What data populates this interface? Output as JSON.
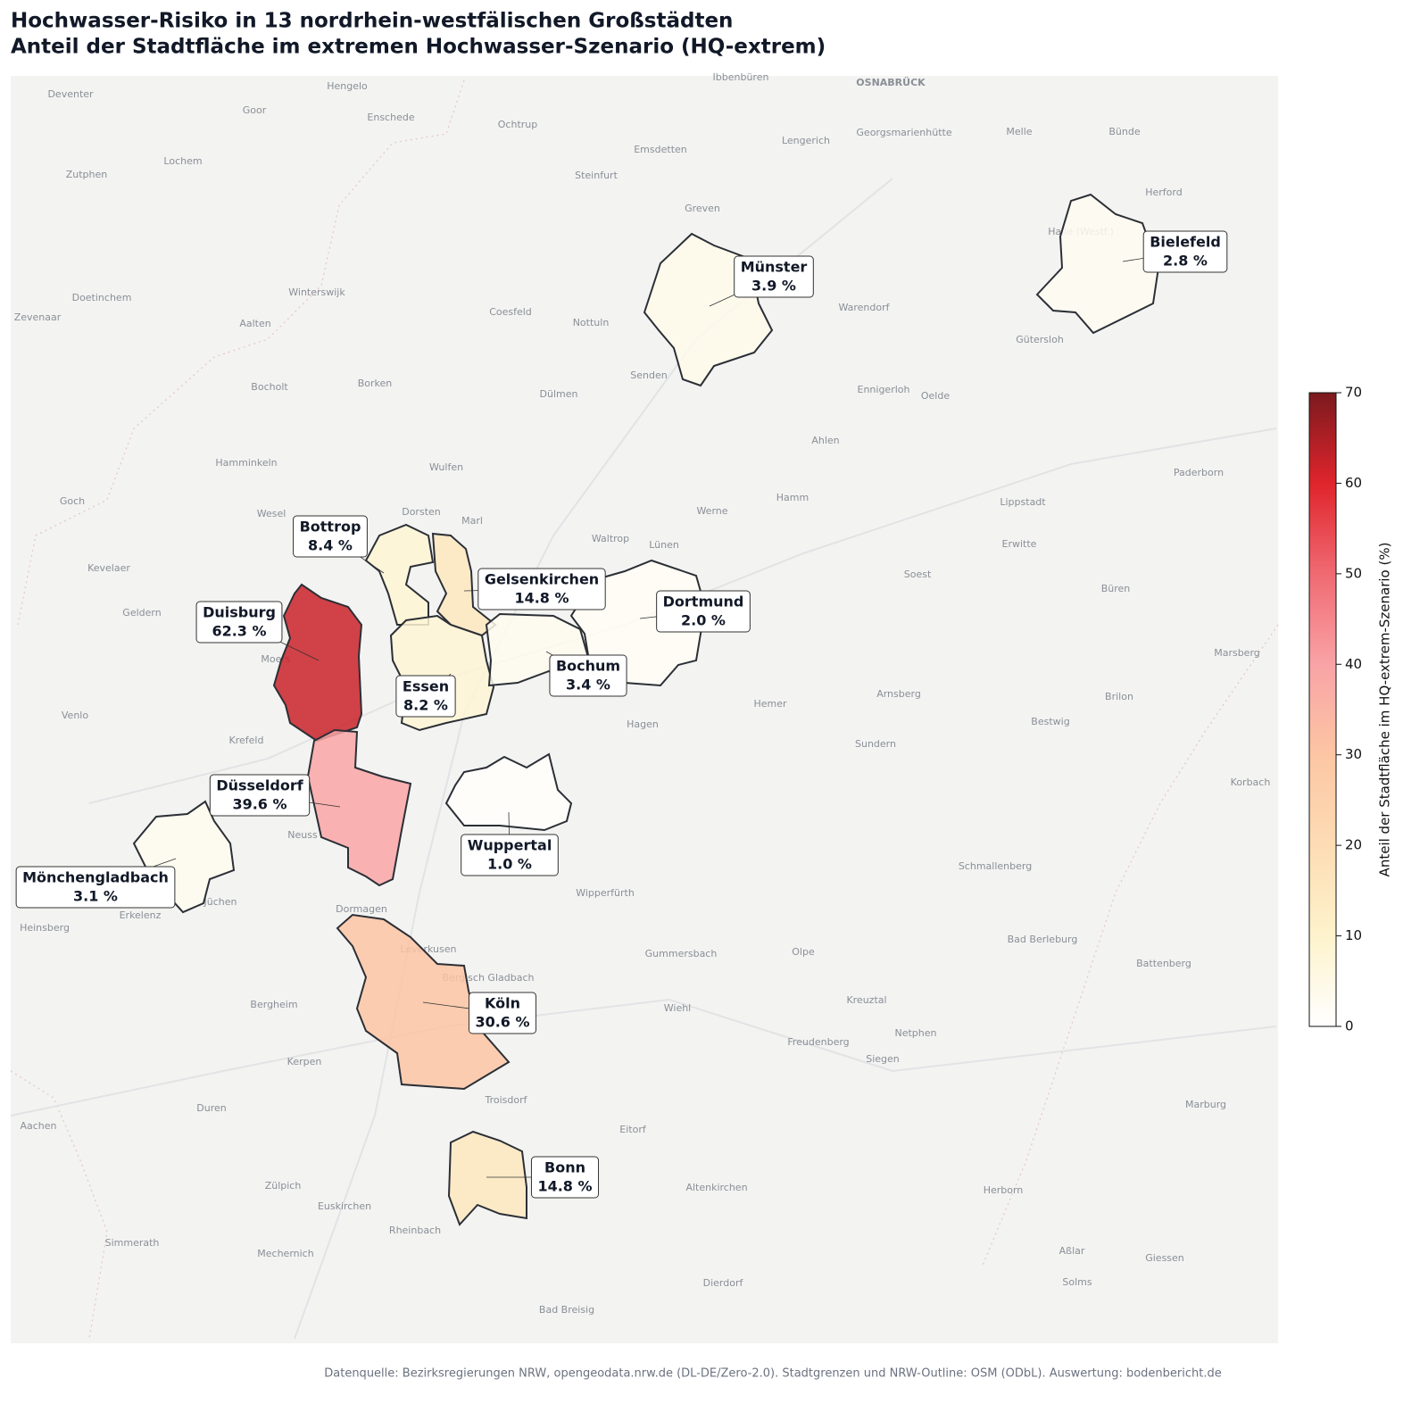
{
  "chart_data": {
    "type": "choropleth",
    "title": "Hochwasser-Risiko in 13 nordrhein-westfälischen Großstädten",
    "subtitle": "Anteil der Stadtfläche im extremen Hochwasser-Szenario (HQ-extrem)",
    "categories": [
      "Münster",
      "Bielefeld",
      "Bottrop",
      "Gelsenkirchen",
      "Dortmund",
      "Duisburg",
      "Essen",
      "Bochum",
      "Düsseldorf",
      "Wuppertal",
      "Mönchengladbach",
      "Köln",
      "Bonn"
    ],
    "values": [
      3.9,
      2.8,
      8.4,
      14.8,
      2.0,
      62.3,
      8.2,
      3.4,
      39.6,
      1.0,
      3.1,
      30.6,
      14.8
    ],
    "value_labels": [
      "3.9 %",
      "2.8 %",
      "8.4 %",
      "14.8 %",
      "2.0 %",
      "62.3 %",
      "8.2 %",
      "3.4 %",
      "39.6 %",
      "1.0 %",
      "3.1 %",
      "30.6 %",
      "14.8 %"
    ],
    "ylim": [
      0,
      70
    ],
    "yticks": [
      0,
      10,
      20,
      30,
      40,
      50,
      60,
      70
    ],
    "ylabel": "Anteil der Stadtfläche im HQ-extrem-Szenario (%)",
    "colormap": [
      "#ffffff",
      "#fdf3cc",
      "#fddcb4",
      "#fcc6a4",
      "#f9a3a6",
      "#f06a72",
      "#e0242c",
      "#7a1a1e"
    ],
    "caption": "Datenquelle: Bezirksregierungen NRW, opengeodata.nrw.de (DL-DE/Zero-2.0). Stadtgrenzen und NRW-Outline: OSM (ODbL). Auswertung: bodenbericht.de",
    "basemap_labels": [
      "Deventer",
      "Hengelo",
      "Goor",
      "Enschede",
      "Ochtrup",
      "Ibbenbüren",
      "OSNABRÜCK",
      "Emsdetten",
      "Lengerich",
      "Georgsmarienhütte",
      "Melle",
      "Bünde",
      "Zutphen",
      "Lochem",
      "Steinfurt",
      "Greven",
      "Herford",
      "Halle (Westf.)",
      "Doetinchem",
      "Winterswijk",
      "Coesfeld",
      "Nottuln",
      "Zevenaar",
      "Aalten",
      "Warendorf",
      "Gütersloh",
      "Bocholt",
      "Borken",
      "Dülmen",
      "Senden",
      "Ennigerloh",
      "Oelde",
      "Ahlen",
      "Hamminkeln",
      "Wulfen",
      "Goch",
      "Wesel",
      "Dorsten",
      "Marl",
      "Hamm",
      "Werne",
      "Lippstadt",
      "Paderborn",
      "Waltrop",
      "Lünen",
      "Erwitte",
      "Kevelaer",
      "Soest",
      "Geldern",
      "Büren",
      "Moers",
      "Venlo",
      "Krefeld",
      "Hemer",
      "Arnsberg",
      "Brilon",
      "Hagen",
      "Sundern",
      "Bestwig",
      "Neuss",
      "Jüchen",
      "Erkelenz",
      "Heinsberg",
      "Dormagen",
      "Wipperfürth",
      "Schmallenberg",
      "Gummersbach",
      "Olpe",
      "Bad Berleburg",
      "Bergheim",
      "Wiehl",
      "Kreuztal",
      "Netphen",
      "Freudenberg",
      "Siegen",
      "Kerpen",
      "Troisdorf",
      "Duren",
      "Aachen",
      "Eitorf",
      "Zülpich",
      "Euskirchen",
      "Altenkirchen",
      "Herborn",
      "Rheinbach",
      "Simmerath",
      "Mechernich",
      "Aßlar",
      "Giessen",
      "Solms",
      "Dierdorf",
      "Bad Breisig",
      "Marburg",
      "Battenberg",
      "Korbach",
      "Marsberg",
      "Leverkusen",
      "Bergisch Gladbach"
    ]
  }
}
